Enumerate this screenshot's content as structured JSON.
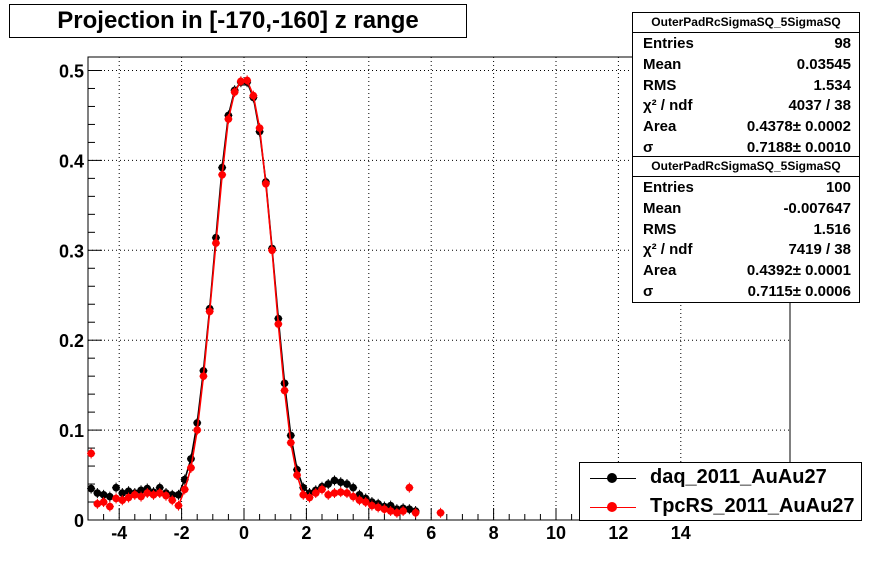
{
  "chart_data": {
    "type": "scatter",
    "title": "Projection in [-170,-160] z range",
    "xlabel": "",
    "ylabel": "",
    "xlim": [
      -5,
      17.5
    ],
    "ylim": [
      0,
      0.515
    ],
    "x_ticks": [
      -4,
      -2,
      0,
      2,
      4,
      6,
      8,
      10,
      12,
      14
    ],
    "y_ticks": [
      0,
      0.1,
      0.2,
      0.3,
      0.4,
      0.5
    ],
    "grid": true,
    "legend_position": "bottom-right",
    "series": [
      {
        "name": "daq_2011_AuAu27",
        "color": "#000000",
        "x": [
          -4.9,
          -4.7,
          -4.5,
          -4.3,
          -4.1,
          -3.9,
          -3.7,
          -3.5,
          -3.3,
          -3.1,
          -2.9,
          -2.7,
          -2.5,
          -2.3,
          -2.1,
          -1.9,
          -1.7,
          -1.5,
          -1.3,
          -1.1,
          -0.9,
          -0.7,
          -0.5,
          -0.3,
          -0.1,
          0.1,
          0.3,
          0.5,
          0.7,
          0.9,
          1.1,
          1.3,
          1.5,
          1.7,
          1.9,
          2.1,
          2.3,
          2.5,
          2.7,
          2.9,
          3.1,
          3.3,
          3.5,
          3.7,
          3.9,
          4.1,
          4.3,
          4.5,
          4.7,
          4.9,
          5.1,
          5.3,
          5.5
        ],
        "y": [
          0.035,
          0.03,
          0.028,
          0.026,
          0.036,
          0.03,
          0.032,
          0.03,
          0.033,
          0.035,
          0.031,
          0.036,
          0.03,
          0.028,
          0.028,
          0.045,
          0.068,
          0.108,
          0.166,
          0.235,
          0.314,
          0.392,
          0.45,
          0.478,
          0.487,
          0.487,
          0.47,
          0.432,
          0.376,
          0.302,
          0.224,
          0.152,
          0.094,
          0.056,
          0.036,
          0.03,
          0.033,
          0.037,
          0.04,
          0.044,
          0.042,
          0.04,
          0.036,
          0.028,
          0.024,
          0.02,
          0.018,
          0.015,
          0.016,
          0.012,
          0.013,
          0.012,
          0.01
        ]
      },
      {
        "name": "TpcRS_2011_AuAu27",
        "color": "#ff0000",
        "x": [
          -4.9,
          -4.7,
          -4.5,
          -4.3,
          -4.1,
          -3.9,
          -3.7,
          -3.5,
          -3.3,
          -3.1,
          -2.9,
          -2.7,
          -2.5,
          -2.3,
          -2.1,
          -1.9,
          -1.7,
          -1.5,
          -1.3,
          -1.1,
          -0.9,
          -0.7,
          -0.5,
          -0.3,
          -0.1,
          0.1,
          0.3,
          0.5,
          0.7,
          0.9,
          1.1,
          1.3,
          1.5,
          1.7,
          1.9,
          2.1,
          2.3,
          2.5,
          2.7,
          2.9,
          3.1,
          3.3,
          3.5,
          3.7,
          3.9,
          4.1,
          4.3,
          4.5,
          4.7,
          4.9,
          5.1,
          5.3,
          5.5,
          6.3
        ],
        "y": [
          0.074,
          0.018,
          0.02,
          0.015,
          0.024,
          0.022,
          0.025,
          0.028,
          0.026,
          0.03,
          0.028,
          0.03,
          0.027,
          0.022,
          0.016,
          0.034,
          0.058,
          0.1,
          0.16,
          0.232,
          0.308,
          0.384,
          0.446,
          0.476,
          0.488,
          0.489,
          0.472,
          0.436,
          0.374,
          0.3,
          0.218,
          0.144,
          0.086,
          0.05,
          0.028,
          0.025,
          0.03,
          0.034,
          0.028,
          0.03,
          0.031,
          0.03,
          0.026,
          0.022,
          0.02,
          0.016,
          0.014,
          0.012,
          0.01,
          0.008,
          0.01,
          0.036,
          0.008,
          0.008
        ]
      }
    ]
  },
  "title_text": "Projection in [-170,-160] z range",
  "stats_boxes": [
    {
      "header": "OuterPadRcSigmaSQ_5SigmaSQ",
      "rows": [
        {
          "k": "Entries",
          "v": "98"
        },
        {
          "k": "Mean",
          "v": "0.03545"
        },
        {
          "k": "RMS",
          "v": "1.534"
        },
        {
          "k": "χ² / ndf",
          "v": "4037 / 38"
        },
        {
          "k": "Area",
          "v": "0.4378± 0.0002"
        },
        {
          "k": "σ",
          "v": "0.7188± 0.0010"
        }
      ]
    },
    {
      "header": "OuterPadRcSigmaSQ_5SigmaSQ",
      "rows": [
        {
          "k": "Entries",
          "v": "100"
        },
        {
          "k": "Mean",
          "v": "-0.007647"
        },
        {
          "k": "RMS",
          "v": "1.516"
        },
        {
          "k": "χ² / ndf",
          "v": "7419 / 38"
        },
        {
          "k": "Area",
          "v": "0.4392± 0.0001"
        },
        {
          "k": "σ",
          "v": "0.7115± 0.0006"
        }
      ]
    }
  ],
  "legend": [
    {
      "label": "daq_2011_AuAu27",
      "color": "#000000"
    },
    {
      "label": "TpcRS_2011_AuAu27",
      "color": "#ff0000"
    }
  ]
}
